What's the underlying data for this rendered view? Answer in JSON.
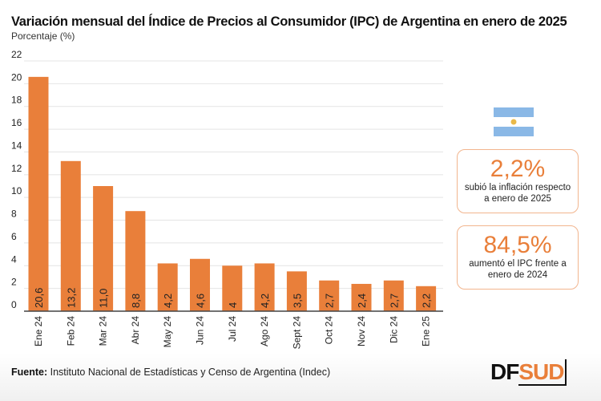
{
  "header": {
    "title": "Variación mensual del Índice de Precios al Consumidor (IPC) de Argentina en enero de 2025",
    "subtitle": "Porcentaje (%)"
  },
  "chart_data": {
    "type": "bar",
    "categories": [
      "Ene 24",
      "Feb 24",
      "Mar 24",
      "Abr 24",
      "May 24",
      "Jun 24",
      "Jul 24",
      "Ago 24",
      "Sept 24",
      "Oct 24",
      "Nov 24",
      "Dic 24",
      "Ene 25"
    ],
    "values": [
      20.6,
      13.2,
      11.0,
      8.8,
      4.2,
      4.6,
      4,
      4.2,
      3.5,
      2.7,
      2.4,
      2.7,
      2.2
    ],
    "data_labels": [
      "20,6",
      "13,2",
      "11,0",
      "8,8",
      "4,2",
      "4,6",
      "4",
      "4,2",
      "3,5",
      "2,7",
      "2,4",
      "2,7",
      "2,2"
    ],
    "ylim": [
      0,
      22
    ],
    "yticks": [
      0,
      2,
      4,
      6,
      8,
      10,
      12,
      14,
      16,
      18,
      20,
      22
    ],
    "grid": true,
    "bar_color": "#e97f3a"
  },
  "cards": [
    {
      "value": "2,2%",
      "text1": "subió la inflación respecto",
      "text2": "a enero de 2025"
    },
    {
      "value": "84,5%",
      "text1": "aumentó el IPC frente a",
      "text2": "enero de 2024"
    }
  ],
  "flag_icon": "argentina-flag-icon",
  "footer": {
    "source_label": "Fuente:",
    "source_text": " Instituto Nacional de Estadísticas y Censo de Argentina (Indec)",
    "logo_df": "DF",
    "logo_sud": "SUD"
  }
}
